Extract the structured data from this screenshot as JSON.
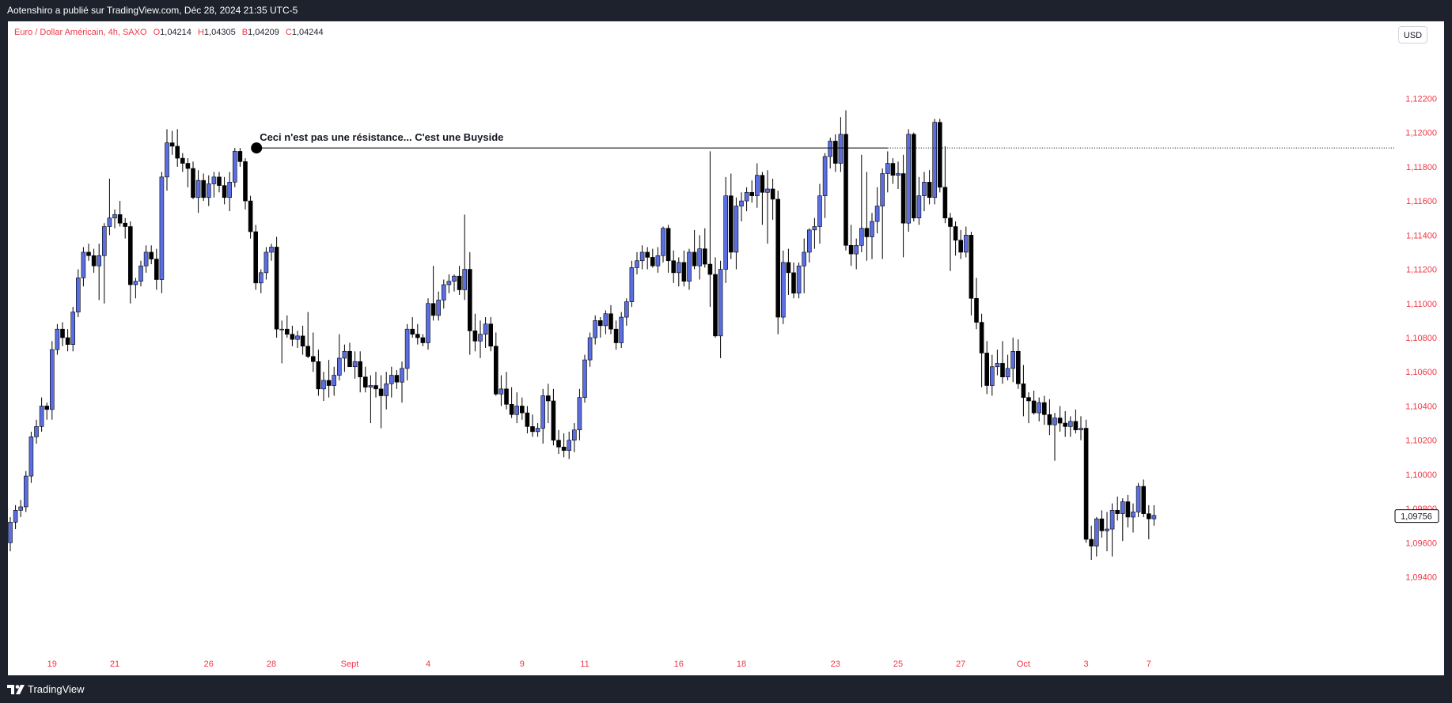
{
  "header": {
    "publisher_line": "Aotenshiro a publié sur TradingView.com, Déc 28, 2024 21:35 UTC-5"
  },
  "legend": {
    "symbol": "Euro / Dollar Américain, 4h, SAXO",
    "open_label": "O",
    "open": "1,04214",
    "high_label": "H",
    "high": "1,04305",
    "low_label": "B",
    "low": "1,04209",
    "close_label": "C",
    "close": "1,04244"
  },
  "currency_button": "USD",
  "footer": {
    "brand": "TradingView",
    "logo_icon": "tradingview-logo-icon"
  },
  "colors": {
    "up_fill": "#5b6ee1",
    "down_fill": "#000000",
    "axis_text": "#f23645",
    "wick": "#000000"
  },
  "chart_data": {
    "type": "candlestick",
    "symbol": "EURUSD",
    "timeframe": "4h",
    "ylim": [
      1.0925,
      1.1235
    ],
    "y_ticks": [
      "1,12200",
      "1,12000",
      "1,11800",
      "1,11600",
      "1,11400",
      "1,11200",
      "1,11000",
      "1,10800",
      "1,10600",
      "1,10400",
      "1,10200",
      "1,10000",
      "1,09800",
      "1,09600",
      "1,09400"
    ],
    "y_tick_values": [
      1.122,
      1.12,
      1.118,
      1.116,
      1.114,
      1.112,
      1.11,
      1.108,
      1.106,
      1.104,
      1.102,
      1.1,
      1.098,
      1.096,
      1.094
    ],
    "x_ticks": [
      {
        "label": "19",
        "bar": 8
      },
      {
        "label": "21",
        "bar": 20
      },
      {
        "label": "26",
        "bar": 38
      },
      {
        "label": "28",
        "bar": 50
      },
      {
        "label": "Sept",
        "bar": 65
      },
      {
        "label": "4",
        "bar": 80
      },
      {
        "label": "9",
        "bar": 98
      },
      {
        "label": "11",
        "bar": 110
      },
      {
        "label": "16",
        "bar": 128
      },
      {
        "label": "18",
        "bar": 140
      },
      {
        "label": "23",
        "bar": 158
      },
      {
        "label": "25",
        "bar": 170
      },
      {
        "label": "27",
        "bar": 182
      },
      {
        "label": "Oct",
        "bar": 194
      },
      {
        "label": "3",
        "bar": 206
      },
      {
        "label": "7",
        "bar": 218
      }
    ],
    "last_price": "1,09756",
    "last_price_value": 1.09756,
    "annotation": {
      "text": "Ceci n'est pas une résistance... C'est une Buyside",
      "level": 1.1191,
      "start_bar": 47
    },
    "dotted_level": 1.1191,
    "candles": [
      [
        1.096,
        1.0975,
        1.0955,
        1.0972
      ],
      [
        1.0972,
        1.0982,
        1.0968,
        1.0979
      ],
      [
        1.0979,
        1.0985,
        1.0975,
        1.0981
      ],
      [
        1.0981,
        1.1002,
        1.0978,
        1.0999
      ],
      [
        1.0999,
        1.1025,
        1.0995,
        1.1022
      ],
      [
        1.1022,
        1.1032,
        1.1018,
        1.1028
      ],
      [
        1.1028,
        1.1045,
        1.1025,
        1.104
      ],
      [
        1.104,
        1.1042,
        1.1032,
        1.1038
      ],
      [
        1.1038,
        1.1078,
        1.1032,
        1.1073
      ],
      [
        1.1073,
        1.1088,
        1.107,
        1.1085
      ],
      [
        1.1085,
        1.1089,
        1.1075,
        1.108
      ],
      [
        1.108,
        1.1085,
        1.1072,
        1.1076
      ],
      [
        1.1076,
        1.1098,
        1.1072,
        1.1095
      ],
      [
        1.1095,
        1.112,
        1.1092,
        1.1115
      ],
      [
        1.1115,
        1.1133,
        1.111,
        1.113
      ],
      [
        1.113,
        1.1135,
        1.1125,
        1.1128
      ],
      [
        1.1128,
        1.1132,
        1.1118,
        1.1122
      ],
      [
        1.1122,
        1.1135,
        1.1102,
        1.1128
      ],
      [
        1.1128,
        1.1147,
        1.11,
        1.1145
      ],
      [
        1.1145,
        1.1173,
        1.114,
        1.115
      ],
      [
        1.115,
        1.1155,
        1.1144,
        1.1152
      ],
      [
        1.1152,
        1.116,
        1.1145,
        1.1147
      ],
      [
        1.1147,
        1.115,
        1.1138,
        1.1145
      ],
      [
        1.1145,
        1.1148,
        1.11,
        1.1111
      ],
      [
        1.1111,
        1.1115,
        1.1103,
        1.1113
      ],
      [
        1.1113,
        1.1125,
        1.111,
        1.1122
      ],
      [
        1.1122,
        1.1134,
        1.1118,
        1.113
      ],
      [
        1.113,
        1.1134,
        1.1123,
        1.1126
      ],
      [
        1.1126,
        1.1132,
        1.1108,
        1.1114
      ],
      [
        1.1114,
        1.1177,
        1.1106,
        1.1174
      ],
      [
        1.1174,
        1.1202,
        1.1166,
        1.1194
      ],
      [
        1.1194,
        1.1201,
        1.1187,
        1.1192
      ],
      [
        1.1192,
        1.1202,
        1.118,
        1.1185
      ],
      [
        1.1185,
        1.1188,
        1.1177,
        1.1182
      ],
      [
        1.1182,
        1.1185,
        1.1168,
        1.1179
      ],
      [
        1.1179,
        1.1183,
        1.1161,
        1.1162
      ],
      [
        1.1162,
        1.1178,
        1.1153,
        1.1172
      ],
      [
        1.1172,
        1.1176,
        1.116,
        1.1162
      ],
      [
        1.1162,
        1.1175,
        1.1157,
        1.117
      ],
      [
        1.117,
        1.1177,
        1.1162,
        1.1174
      ],
      [
        1.1174,
        1.1177,
        1.1165,
        1.1169
      ],
      [
        1.1169,
        1.1174,
        1.1158,
        1.1162
      ],
      [
        1.1162,
        1.1177,
        1.1154,
        1.1171
      ],
      [
        1.1171,
        1.1191,
        1.1168,
        1.1189
      ],
      [
        1.1189,
        1.1191,
        1.118,
        1.1183
      ],
      [
        1.1183,
        1.1185,
        1.1155,
        1.116
      ],
      [
        1.116,
        1.1163,
        1.1138,
        1.1142
      ],
      [
        1.1142,
        1.1146,
        1.1108,
        1.1112
      ],
      [
        1.1112,
        1.112,
        1.1106,
        1.1118
      ],
      [
        1.1118,
        1.1133,
        1.1114,
        1.113
      ],
      [
        1.113,
        1.1135,
        1.1125,
        1.1133
      ],
      [
        1.1133,
        1.1139,
        1.108,
        1.1085
      ],
      [
        1.1085,
        1.109,
        1.1065,
        1.1085
      ],
      [
        1.1085,
        1.1093,
        1.108,
        1.1082
      ],
      [
        1.1082,
        1.1087,
        1.1075,
        1.1079
      ],
      [
        1.1079,
        1.1084,
        1.1074,
        1.1081
      ],
      [
        1.1081,
        1.1087,
        1.107,
        1.1075
      ],
      [
        1.1075,
        1.1095,
        1.1068,
        1.1069
      ],
      [
        1.1069,
        1.1083,
        1.106,
        1.1066
      ],
      [
        1.1066,
        1.1073,
        1.1046,
        1.105
      ],
      [
        1.105,
        1.106,
        1.1043,
        1.1055
      ],
      [
        1.1055,
        1.1067,
        1.1045,
        1.1052
      ],
      [
        1.1052,
        1.1063,
        1.1046,
        1.1058
      ],
      [
        1.1058,
        1.1082,
        1.1055,
        1.1068
      ],
      [
        1.1068,
        1.1076,
        1.106,
        1.1072
      ],
      [
        1.1072,
        1.1077,
        1.1064,
        1.1063
      ],
      [
        1.1063,
        1.1072,
        1.1056,
        1.1066
      ],
      [
        1.1066,
        1.1072,
        1.1048,
        1.1057
      ],
      [
        1.1057,
        1.1063,
        1.1048,
        1.1051
      ],
      [
        1.1051,
        1.1058,
        1.103,
        1.1052
      ],
      [
        1.1052,
        1.106,
        1.1045,
        1.105
      ],
      [
        1.105,
        1.1058,
        1.1027,
        1.1046
      ],
      [
        1.1046,
        1.106,
        1.1038,
        1.1053
      ],
      [
        1.1053,
        1.1063,
        1.1045,
        1.1058
      ],
      [
        1.1058,
        1.1061,
        1.105,
        1.1054
      ],
      [
        1.1054,
        1.1066,
        1.1042,
        1.1062
      ],
      [
        1.1062,
        1.1088,
        1.1055,
        1.1085
      ],
      [
        1.1085,
        1.1092,
        1.108,
        1.1082
      ],
      [
        1.1082,
        1.1088,
        1.1076,
        1.108
      ],
      [
        1.108,
        1.1082,
        1.1075,
        1.1077
      ],
      [
        1.1077,
        1.1103,
        1.1073,
        1.11
      ],
      [
        1.11,
        1.1122,
        1.109,
        1.1093
      ],
      [
        1.1093,
        1.1107,
        1.109,
        1.1102
      ],
      [
        1.1102,
        1.1114,
        1.1097,
        1.1111
      ],
      [
        1.1111,
        1.1117,
        1.1106,
        1.1113
      ],
      [
        1.1113,
        1.1117,
        1.1107,
        1.1116
      ],
      [
        1.1116,
        1.1122,
        1.1105,
        1.1108
      ],
      [
        1.1108,
        1.1152,
        1.1102,
        1.112
      ],
      [
        1.112,
        1.113,
        1.107,
        1.1084
      ],
      [
        1.1084,
        1.1094,
        1.1072,
        1.1078
      ],
      [
        1.1078,
        1.109,
        1.1068,
        1.1082
      ],
      [
        1.1082,
        1.1092,
        1.1074,
        1.1088
      ],
      [
        1.1088,
        1.1092,
        1.1072,
        1.1075
      ],
      [
        1.1075,
        1.1083,
        1.1046,
        1.1047
      ],
      [
        1.1047,
        1.1058,
        1.104,
        1.105
      ],
      [
        1.105,
        1.106,
        1.1038,
        1.1041
      ],
      [
        1.1041,
        1.1051,
        1.1033,
        1.1035
      ],
      [
        1.1035,
        1.1048,
        1.103,
        1.104
      ],
      [
        1.104,
        1.1045,
        1.1032,
        1.1036
      ],
      [
        1.1036,
        1.104,
        1.1024,
        1.1028
      ],
      [
        1.1028,
        1.1035,
        1.1022,
        1.1025
      ],
      [
        1.1025,
        1.103,
        1.1022,
        1.1027
      ],
      [
        1.1027,
        1.105,
        1.1018,
        1.1046
      ],
      [
        1.1046,
        1.1053,
        1.103,
        1.1043
      ],
      [
        1.1043,
        1.105,
        1.1017,
        1.102
      ],
      [
        1.102,
        1.1026,
        1.1012,
        1.1016
      ],
      [
        1.1016,
        1.1024,
        1.101,
        1.1014
      ],
      [
        1.1014,
        1.1025,
        1.1009,
        1.102
      ],
      [
        1.102,
        1.103,
        1.1013,
        1.1026
      ],
      [
        1.1026,
        1.105,
        1.102,
        1.1045
      ],
      [
        1.1045,
        1.107,
        1.1042,
        1.1067
      ],
      [
        1.1067,
        1.1083,
        1.1063,
        1.108
      ],
      [
        1.108,
        1.1093,
        1.1076,
        1.109
      ],
      [
        1.109,
        1.1092,
        1.108,
        1.1087
      ],
      [
        1.1087,
        1.1096,
        1.1082,
        1.1094
      ],
      [
        1.1094,
        1.1099,
        1.1082,
        1.1085
      ],
      [
        1.1085,
        1.109,
        1.1073,
        1.1077
      ],
      [
        1.1077,
        1.1095,
        1.1074,
        1.1092
      ],
      [
        1.1092,
        1.1103,
        1.1087,
        1.1101
      ],
      [
        1.1101,
        1.1125,
        1.1098,
        1.1121
      ],
      [
        1.1121,
        1.113,
        1.1117,
        1.1125
      ],
      [
        1.1125,
        1.1134,
        1.112,
        1.113
      ],
      [
        1.113,
        1.1133,
        1.112,
        1.1127
      ],
      [
        1.1127,
        1.1132,
        1.1121,
        1.1122
      ],
      [
        1.1122,
        1.1133,
        1.1118,
        1.1128
      ],
      [
        1.1128,
        1.1145,
        1.1124,
        1.1144
      ],
      [
        1.1144,
        1.1146,
        1.1118,
        1.1125
      ],
      [
        1.1125,
        1.1131,
        1.1112,
        1.1118
      ],
      [
        1.1118,
        1.1127,
        1.111,
        1.1124
      ],
      [
        1.1124,
        1.1131,
        1.111,
        1.1113
      ],
      [
        1.1113,
        1.1132,
        1.1108,
        1.113
      ],
      [
        1.113,
        1.1143,
        1.112,
        1.1122
      ],
      [
        1.1122,
        1.114,
        1.1114,
        1.1132
      ],
      [
        1.1132,
        1.1144,
        1.1121,
        1.1123
      ],
      [
        1.1123,
        1.1189,
        1.1098,
        1.1117
      ],
      [
        1.1117,
        1.1127,
        1.108,
        1.1081
      ],
      [
        1.1081,
        1.1125,
        1.1068,
        1.112
      ],
      [
        1.112,
        1.1174,
        1.1112,
        1.1163
      ],
      [
        1.1163,
        1.1176,
        1.1126,
        1.113
      ],
      [
        1.113,
        1.1162,
        1.112,
        1.1157
      ],
      [
        1.1157,
        1.1165,
        1.1148,
        1.116
      ],
      [
        1.116,
        1.1168,
        1.1154,
        1.1165
      ],
      [
        1.1165,
        1.1172,
        1.1159,
        1.1163
      ],
      [
        1.1163,
        1.1182,
        1.1156,
        1.1175
      ],
      [
        1.1175,
        1.1177,
        1.1146,
        1.1165
      ],
      [
        1.1165,
        1.1178,
        1.1135,
        1.1167
      ],
      [
        1.1167,
        1.1173,
        1.1149,
        1.1161
      ],
      [
        1.1161,
        1.1166,
        1.1082,
        1.1092
      ],
      [
        1.1092,
        1.1131,
        1.1088,
        1.1124
      ],
      [
        1.1124,
        1.1132,
        1.1105,
        1.1118
      ],
      [
        1.1118,
        1.1124,
        1.1103,
        1.1106
      ],
      [
        1.1106,
        1.1124,
        1.1103,
        1.1122
      ],
      [
        1.1122,
        1.1138,
        1.1106,
        1.113
      ],
      [
        1.113,
        1.1144,
        1.1124,
        1.1143
      ],
      [
        1.1143,
        1.115,
        1.1132,
        1.1145
      ],
      [
        1.1145,
        1.117,
        1.1135,
        1.1163
      ],
      [
        1.1163,
        1.1188,
        1.115,
        1.1186
      ],
      [
        1.1186,
        1.1197,
        1.1179,
        1.1195
      ],
      [
        1.1195,
        1.1199,
        1.1177,
        1.1182
      ],
      [
        1.1182,
        1.1209,
        1.1177,
        1.1199
      ],
      [
        1.1199,
        1.1213,
        1.1131,
        1.1134
      ],
      [
        1.1134,
        1.1146,
        1.1122,
        1.1129
      ],
      [
        1.1129,
        1.1138,
        1.112,
        1.1134
      ],
      [
        1.1134,
        1.1187,
        1.113,
        1.1144
      ],
      [
        1.1144,
        1.1177,
        1.1125,
        1.1139
      ],
      [
        1.1139,
        1.1153,
        1.1126,
        1.1148
      ],
      [
        1.1148,
        1.1168,
        1.1141,
        1.1157
      ],
      [
        1.1157,
        1.1179,
        1.1126,
        1.1176
      ],
      [
        1.1176,
        1.1189,
        1.1165,
        1.1182
      ],
      [
        1.1182,
        1.1185,
        1.117,
        1.1175
      ],
      [
        1.1175,
        1.1183,
        1.1167,
        1.1176
      ],
      [
        1.1176,
        1.1187,
        1.1127,
        1.1147
      ],
      [
        1.1147,
        1.1202,
        1.1142,
        1.1199
      ],
      [
        1.1199,
        1.12,
        1.1148,
        1.115
      ],
      [
        1.115,
        1.1174,
        1.1146,
        1.1163
      ],
      [
        1.1163,
        1.1177,
        1.1154,
        1.1171
      ],
      [
        1.1171,
        1.1178,
        1.1158,
        1.1162
      ],
      [
        1.1162,
        1.1208,
        1.1158,
        1.1206
      ],
      [
        1.1206,
        1.1208,
        1.1165,
        1.1168
      ],
      [
        1.1168,
        1.1192,
        1.1147,
        1.115
      ],
      [
        1.115,
        1.1153,
        1.1119,
        1.1145
      ],
      [
        1.1145,
        1.1148,
        1.1128,
        1.1137
      ],
      [
        1.1137,
        1.1143,
        1.1126,
        1.113
      ],
      [
        1.113,
        1.1145,
        1.1127,
        1.114
      ],
      [
        1.114,
        1.1142,
        1.1093,
        1.1103
      ],
      [
        1.1103,
        1.1115,
        1.1085,
        1.1089
      ],
      [
        1.1089,
        1.1094,
        1.1051,
        1.1071
      ],
      [
        1.1071,
        1.1078,
        1.1047,
        1.1052
      ],
      [
        1.1052,
        1.107,
        1.1046,
        1.1063
      ],
      [
        1.1063,
        1.1073,
        1.1058,
        1.1065
      ],
      [
        1.1065,
        1.1078,
        1.1053,
        1.1057
      ],
      [
        1.1057,
        1.107,
        1.1055,
        1.1062
      ],
      [
        1.1062,
        1.108,
        1.1054,
        1.1072
      ],
      [
        1.1072,
        1.1079,
        1.105,
        1.1053
      ],
      [
        1.1053,
        1.1064,
        1.1034,
        1.1045
      ],
      [
        1.1045,
        1.1048,
        1.103,
        1.1043
      ],
      [
        1.1043,
        1.1049,
        1.1035,
        1.1036
      ],
      [
        1.1036,
        1.1045,
        1.1031,
        1.1042
      ],
      [
        1.1042,
        1.1046,
        1.1029,
        1.1035
      ],
      [
        1.1035,
        1.1044,
        1.1023,
        1.1029
      ],
      [
        1.1029,
        1.1036,
        1.1008,
        1.1033
      ],
      [
        1.1033,
        1.104,
        1.1025,
        1.103
      ],
      [
        1.103,
        1.1037,
        1.1022,
        1.1028
      ],
      [
        1.1028,
        1.1034,
        1.1022,
        1.1031
      ],
      [
        1.1031,
        1.1038,
        1.1024,
        1.1026
      ],
      [
        1.1026,
        1.1034,
        1.102,
        1.1027
      ],
      [
        1.1027,
        1.1032,
        1.096,
        1.0962
      ],
      [
        1.0962,
        1.097,
        1.095,
        1.0958
      ],
      [
        1.0958,
        1.0975,
        1.0952,
        1.0974
      ],
      [
        1.0974,
        1.0979,
        1.0963,
        1.0967
      ],
      [
        1.0967,
        1.0978,
        1.0955,
        1.0968
      ],
      [
        1.0968,
        1.0983,
        1.0952,
        1.0979
      ],
      [
        1.0979,
        1.0987,
        1.0973,
        1.0977
      ],
      [
        1.0977,
        1.0986,
        1.0961,
        1.0984
      ],
      [
        1.0984,
        1.0988,
        1.0969,
        1.0975
      ],
      [
        1.0975,
        1.0983,
        1.0966,
        1.0978
      ],
      [
        1.0978,
        1.0995,
        1.0975,
        1.0993
      ],
      [
        1.0993,
        1.0997,
        1.0975,
        1.0977
      ],
      [
        1.0977,
        1.0982,
        1.0962,
        1.0974
      ],
      [
        1.0974,
        1.0982,
        1.097,
        1.0976
      ]
    ]
  }
}
